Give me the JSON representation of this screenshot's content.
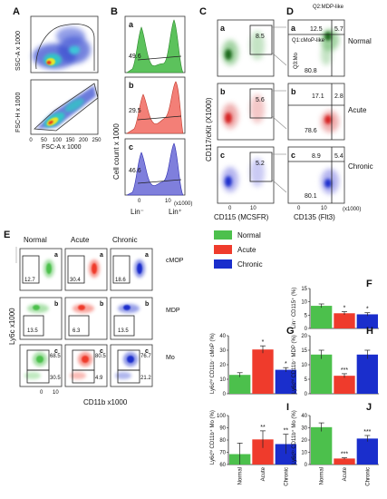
{
  "colors": {
    "normal": "#4cc04c",
    "acute": "#ef3b2c",
    "chronic": "#1a2ecc"
  },
  "panel_letters": {
    "A": "A",
    "B": "B",
    "C": "C",
    "D": "D",
    "E": "E",
    "F": "F",
    "G": "G",
    "H": "H",
    "I": "I",
    "J": "J"
  },
  "A": {
    "top_ylabel": "SSC-A x 1000",
    "bot_ylabel": "FSC-H x 1000",
    "xlabel": "FSC-A x 1000",
    "ticks": [
      "0",
      "50",
      "100",
      "150",
      "200",
      "250"
    ]
  },
  "B": {
    "ylabel": "Cell count x 1000",
    "xlabel_left": "Lin⁻",
    "xlabel_right": "Lin⁺",
    "x_unit": "(x1000)",
    "ticks": [
      "0",
      "10"
    ],
    "sub": [
      "a",
      "b",
      "c"
    ],
    "values": [
      "49.6",
      "29.5",
      "46.6"
    ]
  },
  "C": {
    "ylabel": "CD117/cKit (X1000)",
    "xlabel": "CD115 (MCSFR)",
    "ticks": [
      "0",
      "10"
    ],
    "sub": [
      "a",
      "b",
      "c"
    ],
    "values": [
      "8.5",
      "5.6",
      "5.2"
    ]
  },
  "D": {
    "xlabel": "CD135 (Flt3)",
    "x_unit": "(x1000)",
    "ticks": [
      "0",
      "10"
    ],
    "q2_label": "Q2:MDP-like",
    "q1_label": "Q1:cMoP-like",
    "q3_label": "Q3:Mo",
    "sub": [
      "a",
      "b",
      "c"
    ],
    "rows": [
      {
        "condition": "Normal",
        "q1": "12.5",
        "q2": "5.7",
        "q3": "80.8"
      },
      {
        "condition": "Acute",
        "q1": "17.1",
        "q2": "2.8",
        "q3": "78.6"
      },
      {
        "condition": "Chronic",
        "q1": "8.9",
        "q2": "5.4",
        "q3": "80.1"
      }
    ]
  },
  "E": {
    "col_headers": [
      "Normal",
      "Acute",
      "Chronic"
    ],
    "row_labels": [
      "cMOP",
      "MDP",
      "Mo"
    ],
    "ylabel": "Ly6c x1000",
    "xlabel": "CD11b x1000",
    "ticks": [
      "0",
      "10"
    ],
    "sub": [
      "a",
      "b",
      "c"
    ],
    "cmop": [
      "12.7",
      "30.4",
      "18.6"
    ],
    "mdp": [
      "13.5",
      "6.3",
      "13.5"
    ],
    "mo": [
      {
        "hi": "68.5",
        "lo": "30.5"
      },
      {
        "hi": "80.5",
        "lo": "4.9"
      },
      {
        "hi": "76.7",
        "lo": "21.2"
      }
    ]
  },
  "legend": [
    "Normal",
    "Acute",
    "Chronic"
  ],
  "chart_data": [
    {
      "panel": "F",
      "type": "bar",
      "ylabel": "Lin⁻ CD115⁺ (%)",
      "categories": [
        "Normal",
        "Acute",
        "Chronic"
      ],
      "values": [
        8.5,
        5.7,
        5.3
      ],
      "errors": [
        0.7,
        0.6,
        0.6
      ],
      "significance": [
        "",
        "*",
        "*"
      ],
      "ylim": [
        0,
        15
      ],
      "yticks": [
        0,
        5,
        10,
        15
      ],
      "category_labels_shown": false
    },
    {
      "panel": "G",
      "type": "bar",
      "ylabel": "Ly6cʰⁱ CD11b⁻ cMoP (%)",
      "categories": [
        "Normal",
        "Acute",
        "Chronic"
      ],
      "values": [
        13,
        30.5,
        16.5
      ],
      "errors": [
        1.5,
        2.5,
        1.5
      ],
      "significance": [
        "",
        "*",
        "*"
      ],
      "ylim": [
        0,
        40
      ],
      "yticks": [
        0,
        10,
        20,
        30,
        40
      ],
      "category_labels_shown": false
    },
    {
      "panel": "H",
      "type": "bar",
      "ylabel": "Ly6cʰⁱ CD11b⁻ MDP (%)",
      "categories": [
        "Normal",
        "Acute",
        "Chronic"
      ],
      "values": [
        13.5,
        6.2,
        13.5
      ],
      "errors": [
        1.5,
        0.7,
        1.5
      ],
      "significance": [
        "",
        "***",
        ""
      ],
      "ylim": [
        0,
        20
      ],
      "yticks": [
        0,
        5,
        10,
        15,
        20
      ],
      "category_labels_shown": false
    },
    {
      "panel": "I",
      "type": "bar",
      "ylabel": "Ly6cʰⁱ CD11b⁺ Mo (%)",
      "categories": [
        "Normal",
        "Acute",
        "Chronic"
      ],
      "values": [
        68.5,
        80.5,
        76.7
      ],
      "errors": [
        9,
        7,
        8
      ],
      "significance": [
        "",
        "**",
        "**"
      ],
      "ylim": [
        60,
        100
      ],
      "yticks": [
        60,
        70,
        80,
        90,
        100
      ],
      "category_labels_shown": true
    },
    {
      "panel": "J",
      "type": "bar",
      "ylabel": "Ly6cˡᵒ CD11b⁺ Mo (%)",
      "categories": [
        "Normal",
        "Acute",
        "Chronic"
      ],
      "values": [
        30.5,
        4.9,
        21.2
      ],
      "errors": [
        3.5,
        0.6,
        2.5
      ],
      "significance": [
        "",
        "***",
        "***"
      ],
      "ylim": [
        0,
        40
      ],
      "yticks": [
        0,
        10,
        20,
        30,
        40
      ],
      "category_labels_shown": true
    }
  ]
}
